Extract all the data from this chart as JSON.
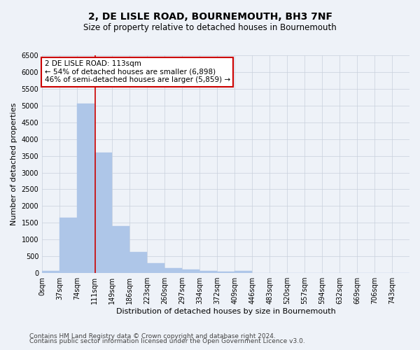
{
  "title": "2, DE LISLE ROAD, BOURNEMOUTH, BH3 7NF",
  "subtitle": "Size of property relative to detached houses in Bournemouth",
  "xlabel": "Distribution of detached houses by size in Bournemouth",
  "ylabel": "Number of detached properties",
  "bin_labels": [
    "0sqm",
    "37sqm",
    "74sqm",
    "111sqm",
    "149sqm",
    "186sqm",
    "223sqm",
    "260sqm",
    "297sqm",
    "334sqm",
    "372sqm",
    "409sqm",
    "446sqm",
    "483sqm",
    "520sqm",
    "557sqm",
    "594sqm",
    "632sqm",
    "669sqm",
    "706sqm",
    "743sqm"
  ],
  "bin_edges": [
    0,
    37,
    74,
    111,
    149,
    186,
    223,
    260,
    297,
    334,
    372,
    409,
    446,
    483,
    520,
    557,
    594,
    632,
    669,
    706,
    743,
    780
  ],
  "bar_values": [
    70,
    1650,
    5050,
    3600,
    1400,
    620,
    300,
    150,
    100,
    70,
    50,
    70,
    0,
    0,
    0,
    0,
    0,
    0,
    0,
    0,
    0
  ],
  "bar_color": "#aec6e8",
  "bar_edgecolor": "#aec6e8",
  "grid_color": "#c8d0dc",
  "vline_x": 113,
  "vline_color": "#cc0000",
  "annotation_text": "2 DE LISLE ROAD: 113sqm\n← 54% of detached houses are smaller (6,898)\n46% of semi-detached houses are larger (5,859) →",
  "annotation_box_color": "#ffffff",
  "annotation_box_edgecolor": "#cc0000",
  "ylim": [
    0,
    6500
  ],
  "yticks": [
    0,
    500,
    1000,
    1500,
    2000,
    2500,
    3000,
    3500,
    4000,
    4500,
    5000,
    5500,
    6000,
    6500
  ],
  "footer1": "Contains HM Land Registry data © Crown copyright and database right 2024.",
  "footer2": "Contains public sector information licensed under the Open Government Licence v3.0.",
  "bg_color": "#eef2f8",
  "plot_bg_color": "#eef2f8",
  "title_fontsize": 10,
  "subtitle_fontsize": 8.5,
  "label_fontsize": 8,
  "tick_fontsize": 7,
  "footer_fontsize": 6.5,
  "annotation_fontsize": 7.5
}
